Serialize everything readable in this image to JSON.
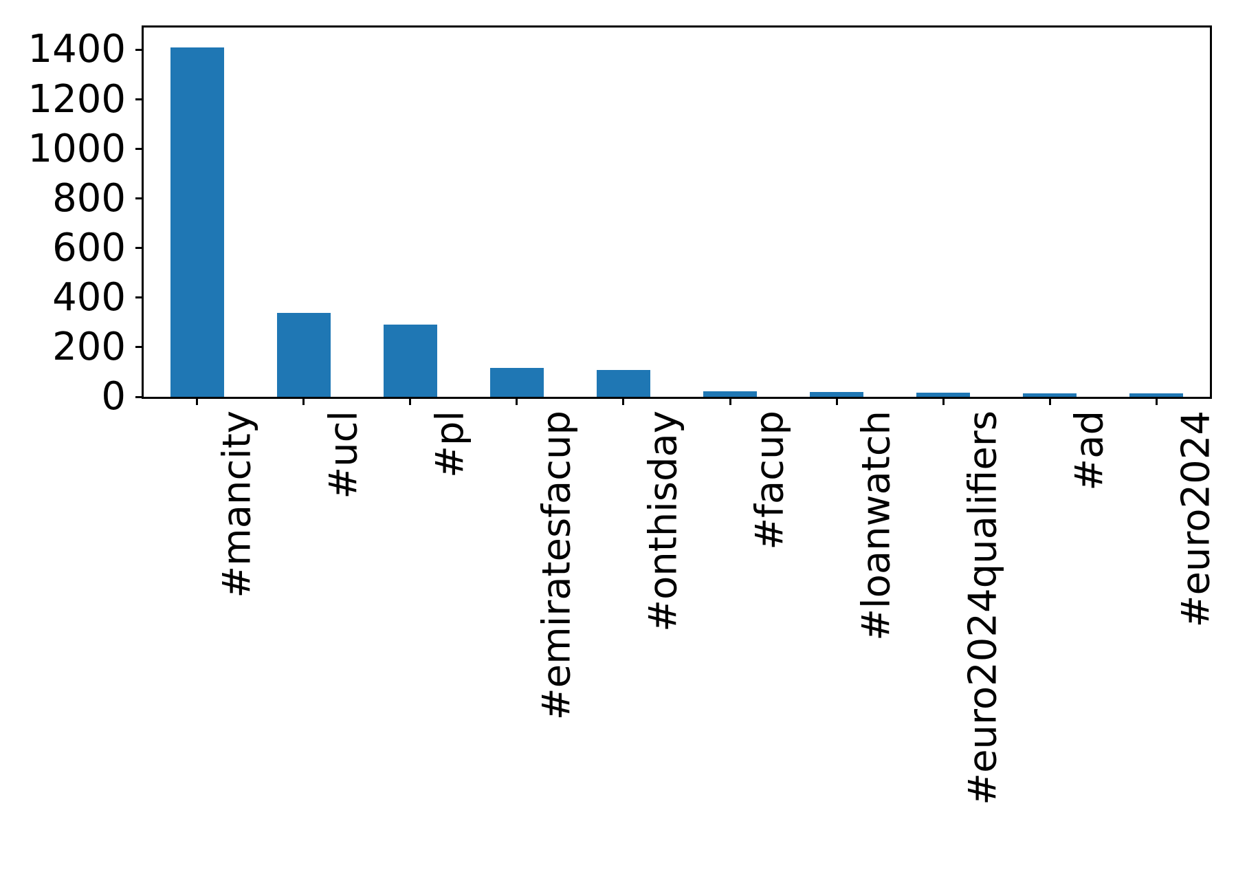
{
  "chart_data": {
    "type": "bar",
    "title": "",
    "xlabel": "",
    "ylabel": "",
    "categories": [
      "#mancity",
      "#ucl",
      "#pl",
      "#emiratesfacup",
      "#onthisday",
      "#facup",
      "#loanwatch",
      "#euro2024qualifiers",
      "#ad",
      "#euro2024"
    ],
    "values": [
      1410,
      338,
      292,
      117,
      107,
      22,
      20,
      16,
      14,
      13
    ],
    "y_ticks": [
      0,
      200,
      400,
      600,
      800,
      1000,
      1200,
      1400
    ],
    "ylim": [
      0,
      1490
    ],
    "x_tick_rotation_deg": 90,
    "grid": false,
    "legend_position": "none",
    "bar_color": "#1f77b4",
    "axis_color": "#000000",
    "text_color": "#000000",
    "background_color": "#ffffff"
  }
}
